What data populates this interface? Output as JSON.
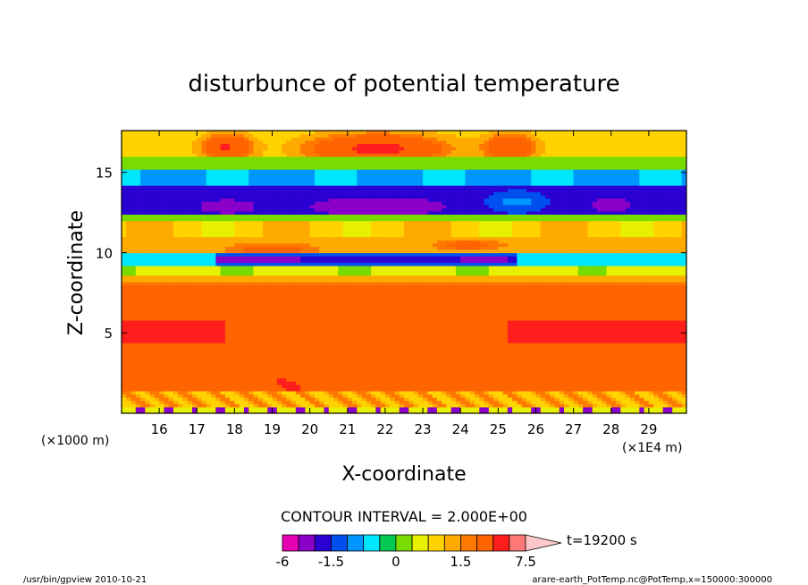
{
  "chart_data": {
    "type": "heatmap",
    "title": "disturbunce of potential temperature",
    "xlabel": "X-coordinate",
    "ylabel": "Z-coordinate",
    "x_unit_left": "(×1000 m)",
    "x_unit_right": "(×1E4 m)",
    "xlim": [
      15,
      30
    ],
    "ylim": [
      0,
      17.6
    ],
    "x_ticks": [
      16,
      17,
      18,
      19,
      20,
      21,
      22,
      23,
      24,
      25,
      26,
      27,
      28,
      29
    ],
    "y_ticks": [
      5,
      10,
      15
    ],
    "contour_interval": "CONTOUR INTERVAL = 2.000E+00",
    "time_label": "t=19200 s",
    "colorbar": {
      "levels": [
        -6,
        -4,
        -2,
        -1.5,
        -1,
        -0.5,
        -0.25,
        0,
        0.25,
        0.5,
        1,
        1.5,
        2,
        4,
        6,
        7.5
      ],
      "labels": [
        "-6",
        "-1.5",
        "0",
        "1.5",
        "7.5"
      ],
      "colors": [
        "#e600b4",
        "#8a00c8",
        "#2b00d2",
        "#0050f0",
        "#0096ff",
        "#00e6ff",
        "#00c850",
        "#78dc00",
        "#e6f000",
        "#ffd200",
        "#ffaa00",
        "#ff7800",
        "#ff6400",
        "#ff1e1e",
        "#ff7878",
        "#ffc8c8"
      ]
    },
    "field_sample": {
      "z_levels_km": [
        0.5,
        1.5,
        3,
        5,
        7,
        8.5,
        9.5,
        10.5,
        11.5,
        13,
        14.5,
        16.5
      ],
      "dominant_band": [
        "-1 to 1.5",
        "2 to 4",
        "2 to 4",
        "4 to 6",
        "2 to 4",
        "0 to 1.5",
        "-2 to -0.5",
        "1.5 to 4",
        "0.5 to 1.5",
        "-6 to -1.5",
        "-0.5 to 0.5",
        "1 to 6"
      ]
    }
  },
  "footer": {
    "left": "/usr/bin/gpview   2010-10-21",
    "right": "arare-earth_PotTemp.nc@PotTemp,x=150000:300000"
  },
  "colors": {
    "frame": "#000000",
    "background": "#ffffff"
  }
}
